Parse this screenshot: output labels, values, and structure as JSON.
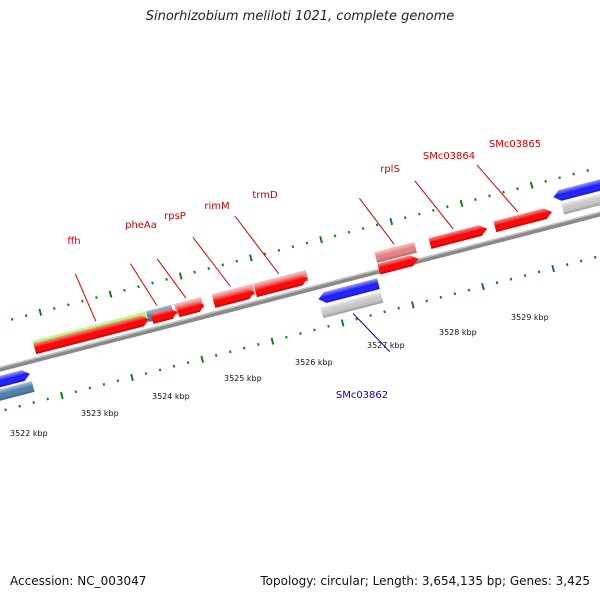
{
  "title": "Sinorhizobium meliloti 1021, complete genome",
  "footer": {
    "accession": "Accession: NC_003047",
    "info": "Topology: circular; Length: 3,654,135 bp; Genes: 3,425"
  },
  "axis": {
    "unit": "kbp",
    "ticks": [
      "3522 kbp",
      "3523 kbp",
      "3524 kbp",
      "3525 kbp",
      "3526 kbp",
      "3527 kbp",
      "3528 kbp",
      "3529 kbp"
    ]
  },
  "colors": {
    "forward_gene": "#ff0000",
    "reverse_gene": "#1a1aff",
    "rrna_light": "#e88080",
    "highlight": "#99ee33",
    "steel": "#4a7fb0",
    "grey": "#c8c8c8",
    "tick": "#227722",
    "label_red": "#cc0000",
    "label_blue": "#0000cc",
    "backbone": "#888888"
  },
  "labels": {
    "ffh": "ffh",
    "pheAa": "pheAa",
    "rpsP": "rpsP",
    "rimM": "rimM",
    "trmD": "trmD",
    "rplS": "rplS",
    "SMc03864": "SMc03864",
    "SMc03865": "SMc03865",
    "SMc03862": "SMc03862"
  }
}
